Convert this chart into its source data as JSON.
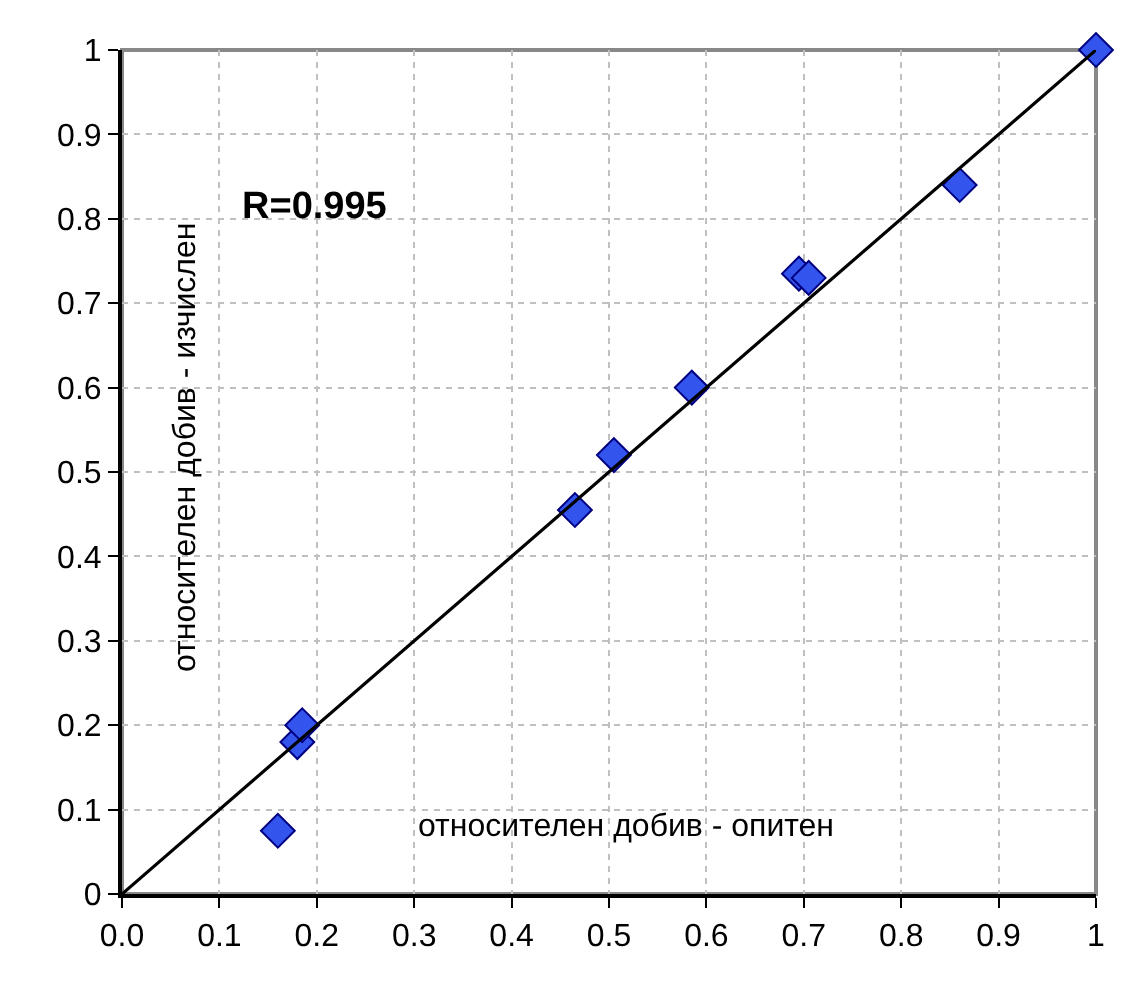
{
  "chart_data": {
    "type": "scatter",
    "xlabel": "относителен добив - опитен",
    "ylabel": "относителен добив - изчислен",
    "annotations": [
      "R=0.995"
    ],
    "series": [
      {
        "color": "#3355ee",
        "marker": "diamond",
        "x": [
          0.16,
          0.18,
          0.185,
          0.465,
          0.505,
          0.585,
          0.695,
          0.705,
          0.86,
          1.0
        ],
        "values": [
          0.075,
          0.18,
          0.2,
          0.455,
          0.52,
          0.6,
          0.735,
          0.73,
          0.84,
          1.0
        ]
      },
      {
        "type": "line",
        "marker": "none",
        "color": "#000000",
        "x": [
          0,
          1
        ],
        "values": [
          0,
          1
        ]
      }
    ],
    "xlim": [
      0,
      1
    ],
    "ylim": [
      0,
      1
    ],
    "xticks": [
      {
        "value": 0,
        "label": "0.0"
      },
      {
        "value": 0.1,
        "label": "0.1"
      },
      {
        "value": 0.2,
        "label": "0.2"
      },
      {
        "value": 0.3,
        "label": "0.3"
      },
      {
        "value": 0.4,
        "label": "0.4"
      },
      {
        "value": 0.5,
        "label": "0.5"
      },
      {
        "value": 0.6,
        "label": "0.6"
      },
      {
        "value": 0.7,
        "label": "0.7"
      },
      {
        "value": 0.8,
        "label": "0.8"
      },
      {
        "value": 0.9,
        "label": "0.9"
      },
      1
    ],
    "yticks": [
      0,
      0.1,
      0.2,
      0.3,
      0.4,
      0.5,
      0.6,
      0.7,
      0.8,
      0.9,
      1
    ],
    "grid": true
  }
}
